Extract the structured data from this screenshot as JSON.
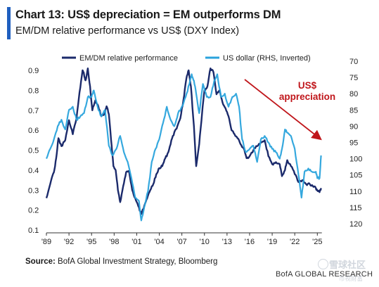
{
  "header": {
    "title": "Chart 13: US$ depreciation = EM outperforms DM",
    "subtitle": "EM/DM relative performance vs US$ (DXY Index)",
    "accent_color": "#1f5fbf"
  },
  "footer": {
    "source_label": "Source:",
    "source_text": " BofA Global Investment Strategy, Bloomberg",
    "brand": "BofA GLOBAL RESEARCH",
    "watermark_line1": "雪球社区",
    "watermark_line2": "币视财富"
  },
  "chart_data": {
    "type": "line",
    "x_tick_labels": [
      "'89",
      "'92",
      "'95",
      "'98",
      "'01",
      "'04",
      "'07",
      "'10",
      "'13",
      "'16",
      "'19",
      "'22",
      "'25"
    ],
    "xlim": [
      1989,
      2026
    ],
    "grid": false,
    "legend_position": "top",
    "left_axis": {
      "range": [
        0.1,
        0.9
      ],
      "ticks": [
        "0.1",
        "0.2",
        "0.3",
        "0.4",
        "0.5",
        "0.6",
        "0.7",
        "0.8",
        "0.9"
      ]
    },
    "right_axis": {
      "range": [
        70,
        120
      ],
      "inverted": true,
      "ticks": [
        "70",
        "75",
        "80",
        "85",
        "90",
        "95",
        "100",
        "105",
        "110",
        "115",
        "120"
      ]
    },
    "series": [
      {
        "name": "EM/DM relative performance",
        "axis": "left",
        "color": "#1b2a6b",
        "x": [
          1989.0,
          1989.5,
          1990.0,
          1990.3,
          1990.6,
          1991.0,
          1991.5,
          1992.0,
          1992.5,
          1993.0,
          1993.4,
          1993.8,
          1994.0,
          1994.2,
          1994.5,
          1994.8,
          1995.1,
          1995.5,
          1995.9,
          1996.3,
          1996.7,
          1997.0,
          1997.3,
          1997.6,
          1997.9,
          1998.2,
          1998.5,
          1998.8,
          1999.2,
          1999.6,
          2000.0,
          2000.4,
          2000.8,
          2001.2,
          2001.6,
          2002.0,
          2002.4,
          2002.8,
          2003.2,
          2003.6,
          2004.0,
          2004.4,
          2004.8,
          2005.2,
          2005.6,
          2006.0,
          2006.4,
          2006.8,
          2007.2,
          2007.6,
          2007.9,
          2008.2,
          2008.6,
          2008.9,
          2009.3,
          2009.7,
          2010.0,
          2010.4,
          2010.8,
          2011.2,
          2011.6,
          2012.0,
          2012.4,
          2012.8,
          2013.2,
          2013.6,
          2014.0,
          2014.4,
          2014.8,
          2015.2,
          2015.6,
          2016.0,
          2016.5,
          2017.0,
          2017.5,
          2018.0,
          2018.5,
          2019.0,
          2019.5,
          2020.0,
          2020.3,
          2020.7,
          2021.0,
          2021.5,
          2022.0,
          2022.5,
          2023.0,
          2023.5,
          2024.0,
          2024.4,
          2024.8,
          2025.0,
          2025.3,
          2025.5
        ],
        "y": [
          0.26,
          0.33,
          0.39,
          0.46,
          0.56,
          0.52,
          0.55,
          0.65,
          0.58,
          0.66,
          0.79,
          0.9,
          0.88,
          0.85,
          0.91,
          0.82,
          0.7,
          0.75,
          0.72,
          0.67,
          0.68,
          0.72,
          0.68,
          0.55,
          0.42,
          0.4,
          0.3,
          0.24,
          0.32,
          0.39,
          0.39,
          0.3,
          0.26,
          0.22,
          0.18,
          0.22,
          0.26,
          0.3,
          0.33,
          0.38,
          0.41,
          0.42,
          0.46,
          0.49,
          0.55,
          0.59,
          0.62,
          0.66,
          0.75,
          0.86,
          0.9,
          0.82,
          0.62,
          0.42,
          0.53,
          0.69,
          0.8,
          0.82,
          0.91,
          0.89,
          0.78,
          0.8,
          0.74,
          0.71,
          0.67,
          0.6,
          0.58,
          0.56,
          0.53,
          0.51,
          0.46,
          0.47,
          0.5,
          0.52,
          0.54,
          0.55,
          0.47,
          0.43,
          0.44,
          0.43,
          0.37,
          0.4,
          0.45,
          0.42,
          0.38,
          0.34,
          0.35,
          0.33,
          0.33,
          0.32,
          0.31,
          0.3,
          0.29,
          0.31
        ]
      },
      {
        "name": "US dollar (RHS, Inverted)",
        "axis": "right",
        "color": "#2aa3dc",
        "x": [
          1989.0,
          1989.5,
          1990.0,
          1990.5,
          1991.0,
          1991.5,
          1992.0,
          1992.5,
          1993.0,
          1993.5,
          1994.0,
          1994.5,
          1995.0,
          1995.3,
          1995.8,
          1996.3,
          1996.8,
          1997.3,
          1997.8,
          1998.3,
          1998.8,
          1999.3,
          1999.8,
          2000.3,
          2000.8,
          2001.3,
          2001.6,
          2002.0,
          2002.5,
          2003.0,
          2003.5,
          2004.0,
          2004.5,
          2005.0,
          2005.5,
          2006.0,
          2006.5,
          2007.0,
          2007.5,
          2008.0,
          2008.3,
          2008.6,
          2008.9,
          2009.3,
          2009.8,
          2010.3,
          2010.8,
          2011.3,
          2011.7,
          2012.2,
          2012.7,
          2013.2,
          2013.7,
          2014.2,
          2014.6,
          2015.0,
          2015.5,
          2016.0,
          2016.5,
          2017.0,
          2017.5,
          2018.0,
          2018.5,
          2019.0,
          2019.5,
          2020.0,
          2020.3,
          2020.7,
          2021.0,
          2021.5,
          2022.0,
          2022.5,
          2022.9,
          2023.3,
          2023.8,
          2024.3,
          2024.8,
          2025.0,
          2025.3,
          2025.5
        ],
        "y": [
          100,
          97,
          94,
          90,
          88,
          91,
          85,
          84,
          88,
          87,
          86,
          81,
          81,
          79,
          84,
          87,
          85,
          96,
          99,
          97,
          93,
          98,
          101,
          106,
          112,
          113,
          119,
          115,
          110,
          101,
          97,
          94,
          89,
          84,
          88,
          90,
          86,
          84,
          81,
          77,
          74,
          76,
          80,
          86,
          77,
          81,
          81,
          76,
          74,
          81,
          80,
          84,
          81,
          80,
          84,
          94,
          98,
          97,
          96,
          101,
          94,
          93,
          95,
          97,
          98,
          100,
          97,
          91,
          92,
          93,
          97,
          105,
          112,
          104,
          103,
          104,
          104,
          106,
          106,
          99
        ]
      }
    ],
    "annotation": {
      "line1": "US$",
      "line2": "appreciation",
      "color": "#c0161b"
    }
  }
}
